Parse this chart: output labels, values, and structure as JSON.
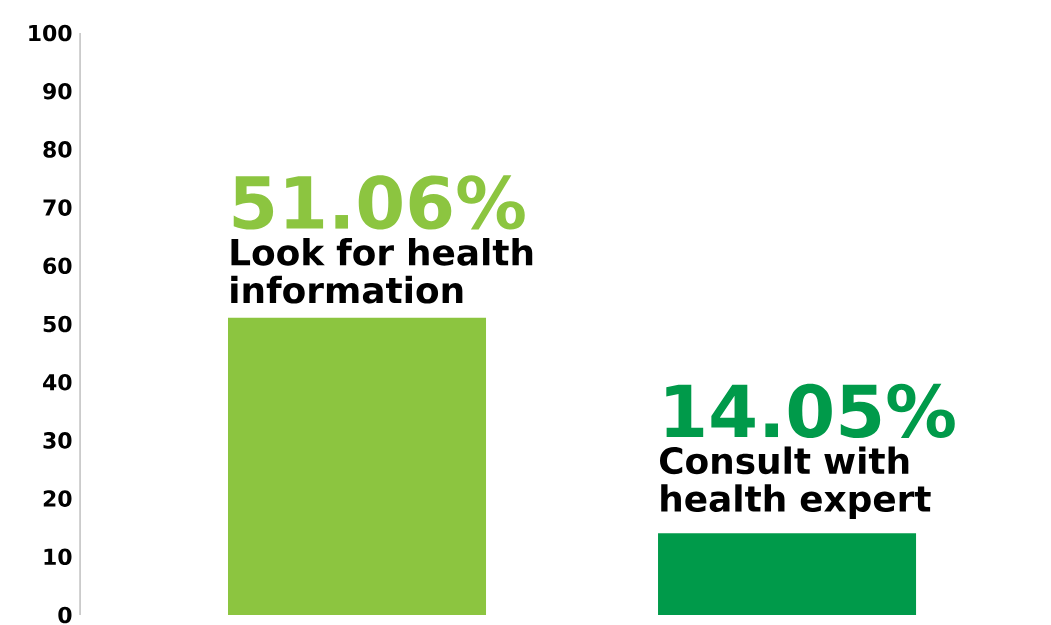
{
  "chart_data": {
    "type": "bar",
    "categories": [
      "Look for health information",
      "Consult with health expert"
    ],
    "values": [
      51.06,
      14.05
    ],
    "colors": [
      "#8cc540",
      "#009a4a"
    ],
    "value_labels": [
      "51.06%",
      "14.05%"
    ],
    "ylim": [
      0,
      100
    ],
    "yticks": [
      0,
      10,
      20,
      30,
      40,
      50,
      60,
      70,
      80,
      90,
      100
    ]
  }
}
